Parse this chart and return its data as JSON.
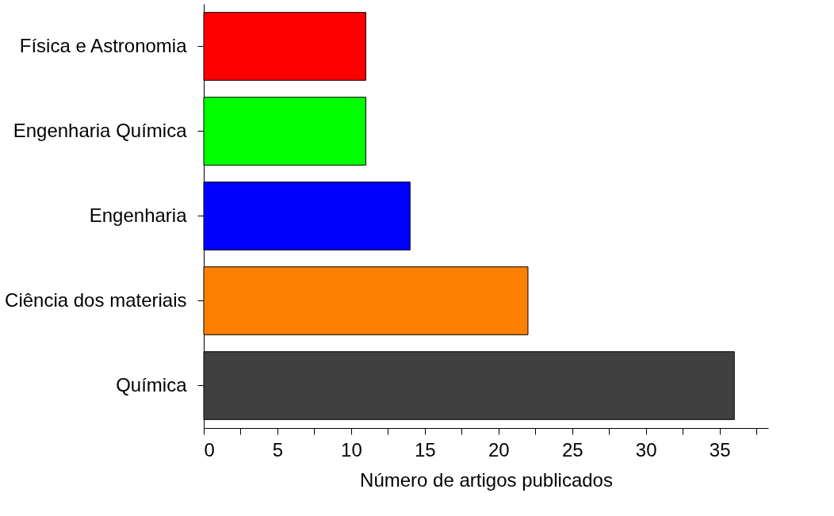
{
  "chart_data": {
    "type": "bar",
    "orientation": "horizontal",
    "xlabel": "Número de artigos publicados",
    "categories": [
      "Física e Astronomia",
      "Engenharia Química",
      "Engenharia",
      "Ciência dos materiais",
      "Química"
    ],
    "values": [
      11,
      11,
      14,
      22,
      36
    ],
    "colors": [
      "#ff0000",
      "#00ff00",
      "#0000ff",
      "#ff8000",
      "#404040"
    ],
    "xlim": [
      0,
      38.3
    ],
    "xticks": [
      0,
      {
        "value": 2.5,
        "label": null
      },
      5,
      {
        "value": 7.5,
        "label": null
      },
      10,
      {
        "value": 12.5,
        "label": null
      },
      15,
      {
        "value": 17.5,
        "label": null
      },
      20,
      {
        "value": 22.5,
        "label": null
      },
      25,
      {
        "value": 27.5,
        "label": null
      },
      30,
      {
        "value": 32.5,
        "label": null
      },
      35,
      {
        "value": 37.5,
        "label": null
      }
    ],
    "grid": false,
    "legend": false
  }
}
